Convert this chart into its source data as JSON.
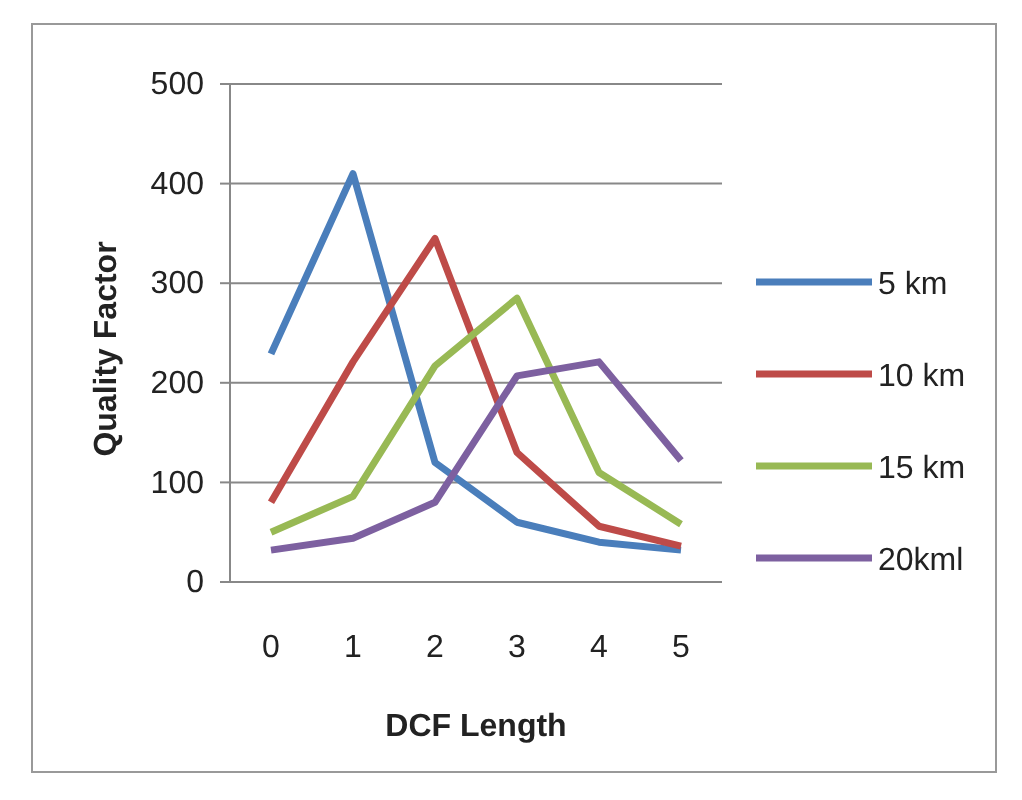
{
  "chart_data": {
    "type": "line",
    "xlabel": "DCF Length",
    "ylabel": "Quality Factor",
    "categories": [
      "0",
      "1",
      "2",
      "3",
      "4",
      "5"
    ],
    "series": [
      {
        "name": "5 km",
        "color": "#4a7ebb",
        "values": [
          229,
          410,
          120,
          60,
          40,
          32
        ]
      },
      {
        "name": "10 km",
        "color": "#be4b48",
        "values": [
          80,
          221,
          345,
          130,
          56,
          36
        ]
      },
      {
        "name": "15 km",
        "color": "#98b954",
        "values": [
          50,
          86,
          217,
          285,
          110,
          58
        ]
      },
      {
        "name": "20kml",
        "color": "#7d60a0",
        "values": [
          32,
          44,
          80,
          207,
          221,
          122
        ]
      }
    ],
    "ylim": [
      0,
      500
    ],
    "yticks": [
      0,
      100,
      200,
      300,
      400,
      500
    ],
    "grid": "y",
    "legend": "right",
    "marker": "none",
    "line_style": "solid"
  }
}
